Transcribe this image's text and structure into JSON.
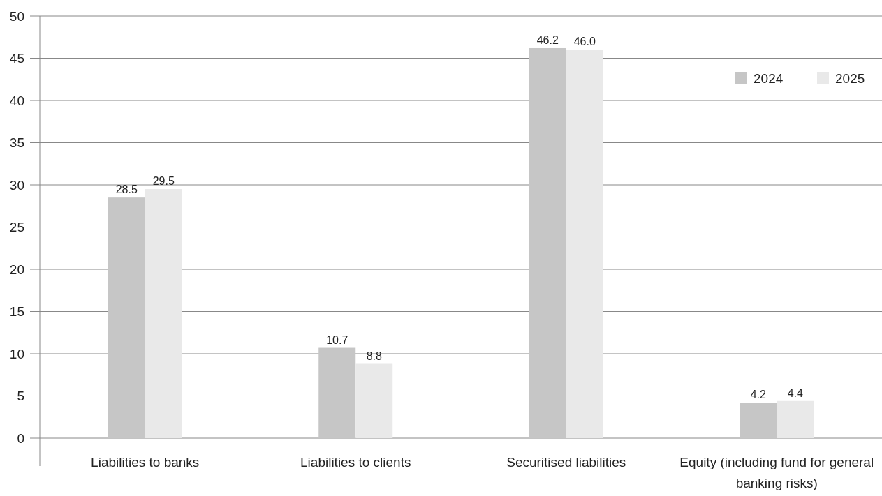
{
  "chart_data": {
    "type": "bar",
    "categories": [
      "Liabilities to banks",
      "Liabilities to clients",
      "Securitised liabilities",
      "Equity (including fund for general banking risks)"
    ],
    "series": [
      {
        "name": "2024",
        "color": "#c6c6c6",
        "values": [
          28.5,
          10.7,
          46.2,
          4.2
        ],
        "value_labels": [
          "28.5",
          "10.7",
          "46.2",
          "4.2"
        ]
      },
      {
        "name": "2025",
        "color": "#e9e9e9",
        "values": [
          29.5,
          8.8,
          46.0,
          4.4
        ],
        "value_labels": [
          "29.5",
          "8.8",
          "46.0",
          "4.4"
        ]
      }
    ],
    "ylim": [
      0,
      50
    ],
    "yticks": [
      0,
      5,
      10,
      15,
      20,
      25,
      30,
      35,
      40,
      45,
      50
    ],
    "grid": "y",
    "legend": "top right"
  }
}
